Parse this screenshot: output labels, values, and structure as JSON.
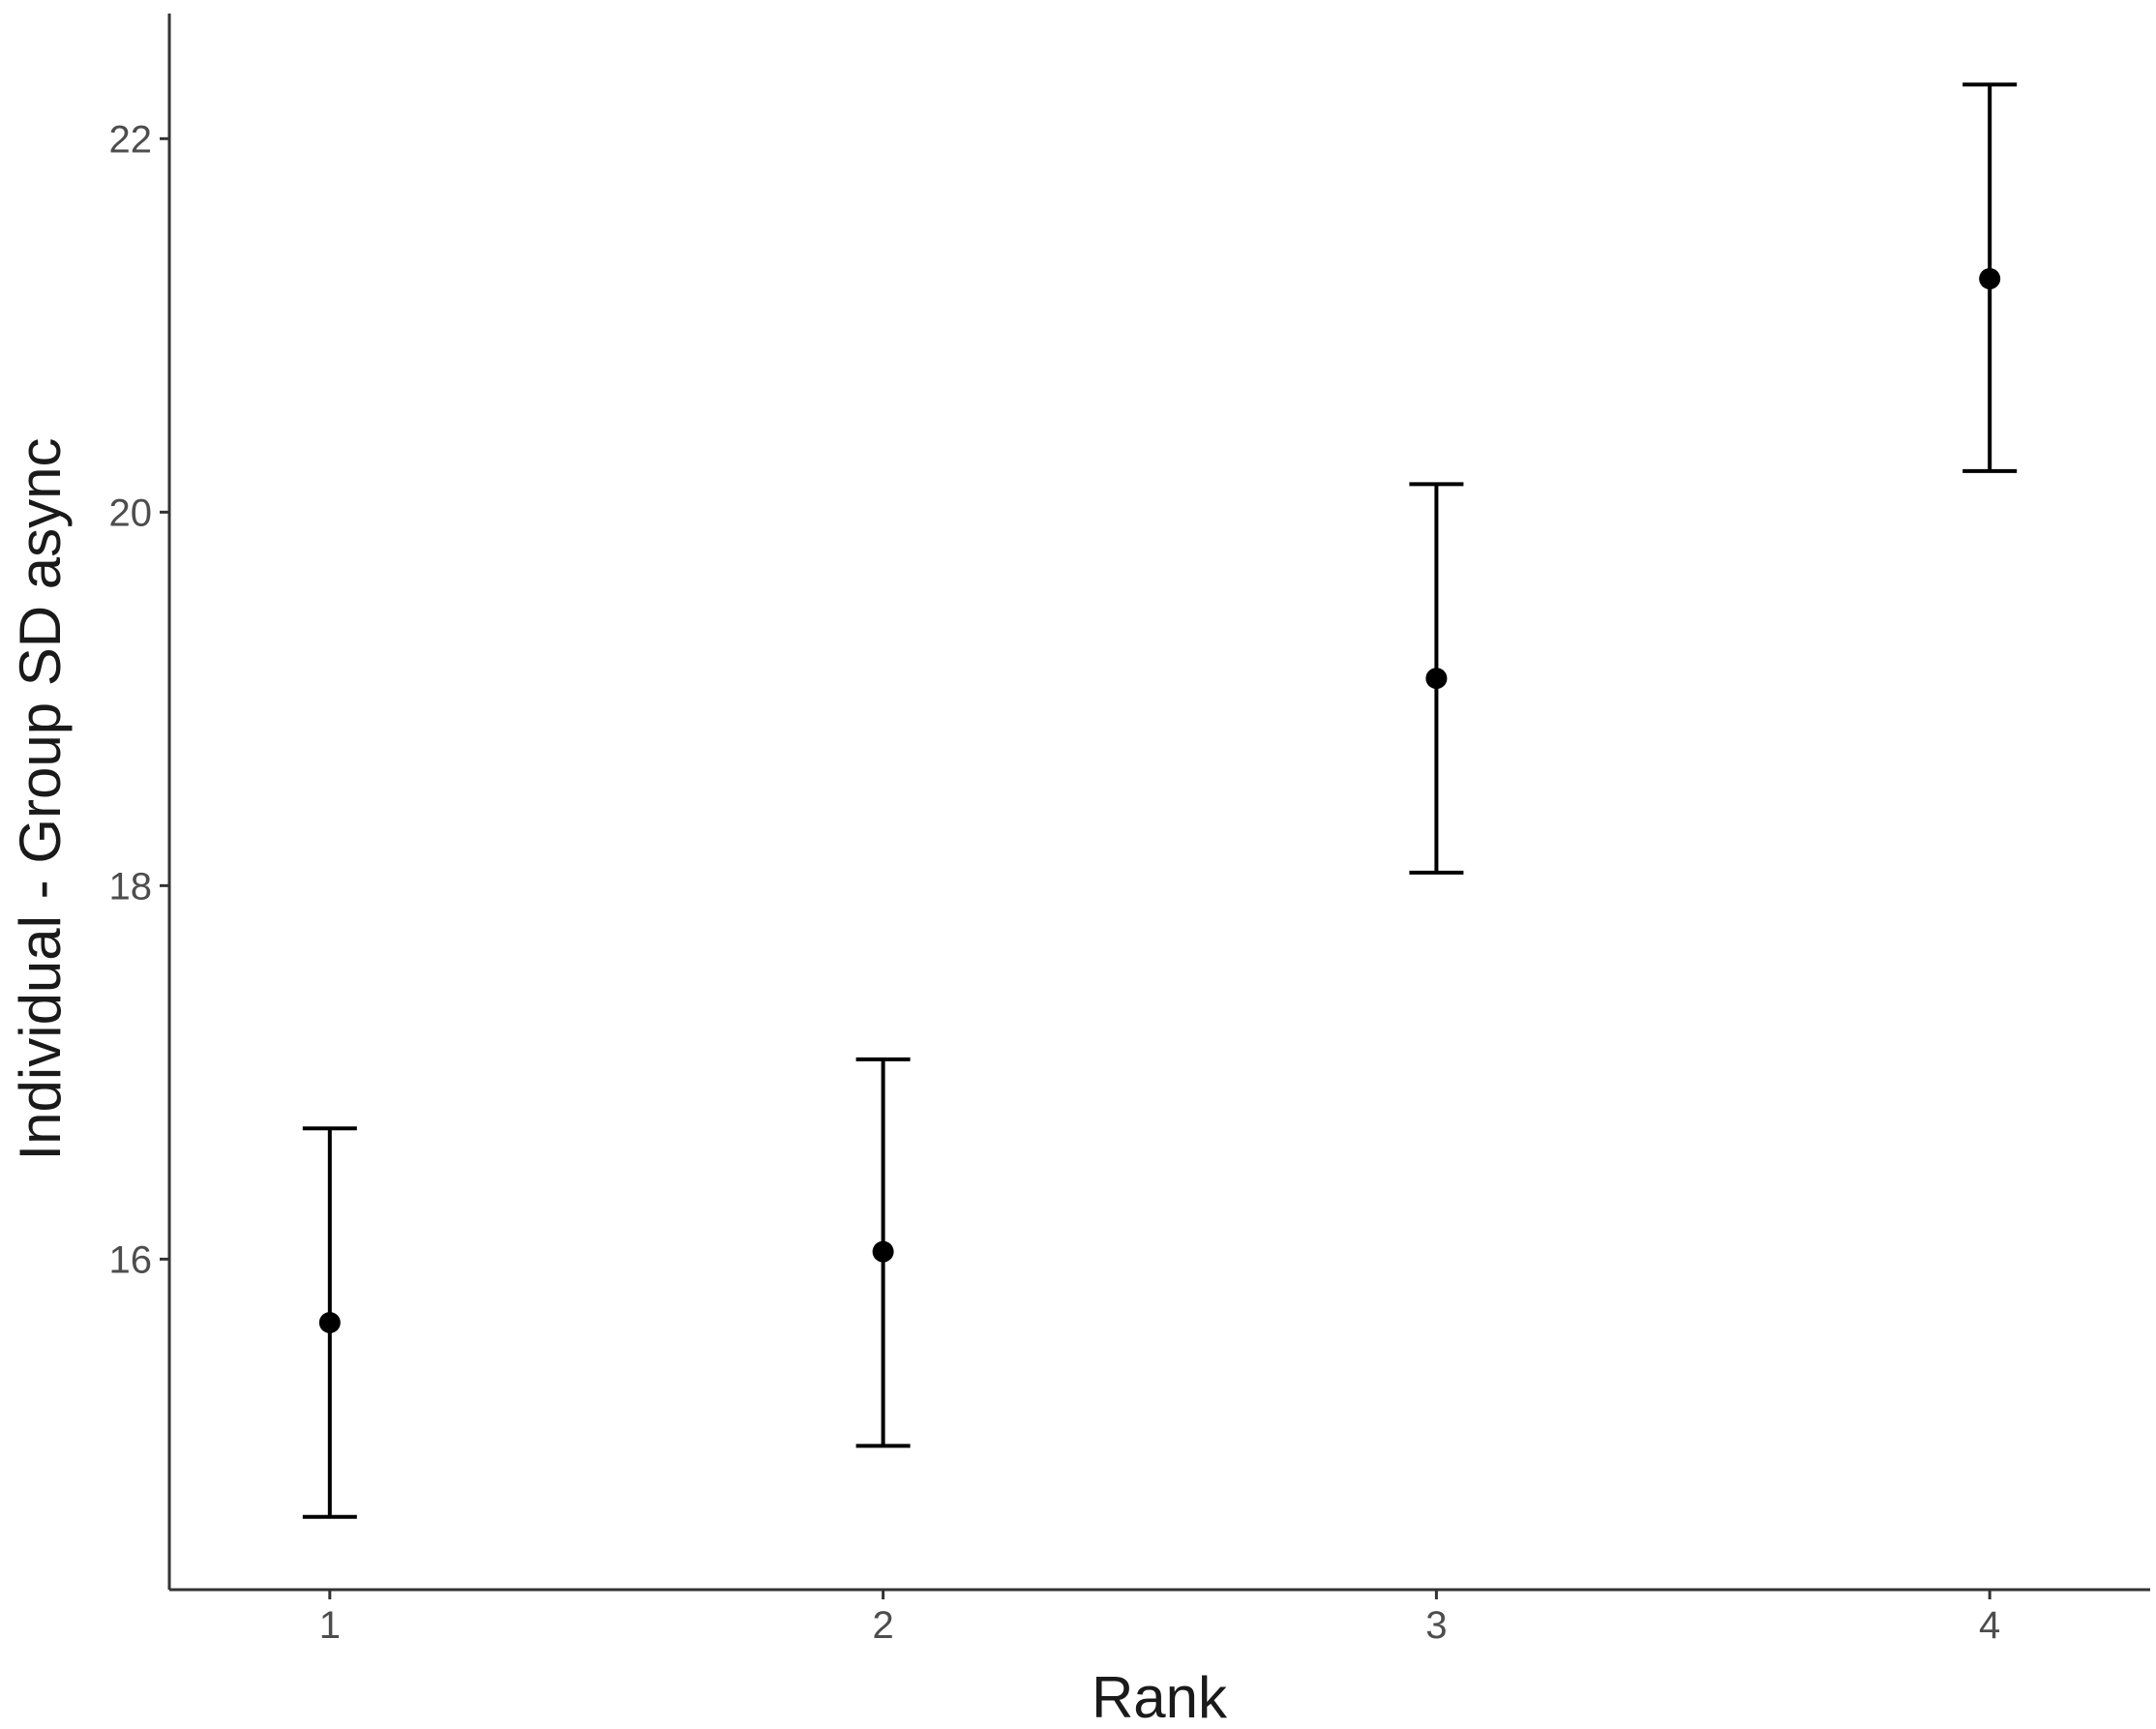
{
  "chart_data": {
    "type": "errorbar",
    "x_label": "Rank",
    "y_label": "Individual - Group SD async",
    "x": [
      1,
      2,
      3,
      4
    ],
    "values": [
      15.66,
      16.04,
      19.11,
      21.25
    ],
    "lower": [
      14.62,
      15.0,
      18.07,
      20.22
    ],
    "upper": [
      16.7,
      17.07,
      20.15,
      22.29
    ],
    "color": "#000000",
    "xlim": [
      0.71,
      4.29
    ],
    "xticks": [
      1,
      2,
      3,
      4
    ],
    "ylim": [
      14.23,
      22.67
    ],
    "yticks": [
      16,
      18,
      20,
      22
    ]
  }
}
